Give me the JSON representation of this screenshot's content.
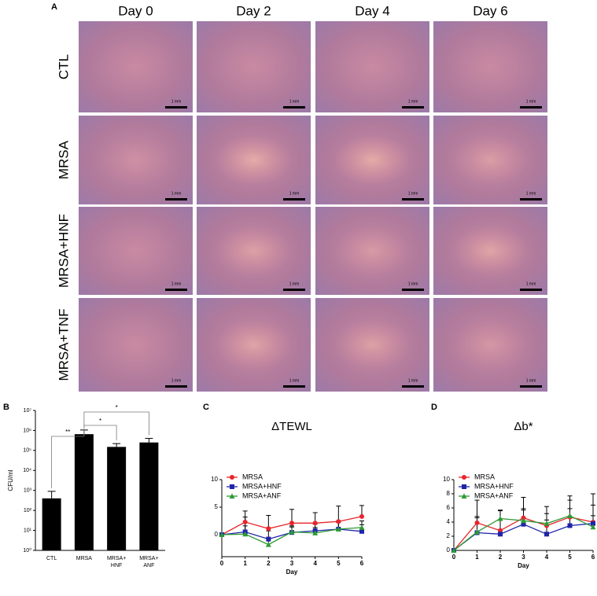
{
  "panel_a": {
    "label": "A",
    "columns": [
      "Day 0",
      "Day 2",
      "Day 4",
      "Day 6"
    ],
    "rows": [
      "CTL",
      "MRSA",
      "MRSA+HNF",
      "MRSA+TNF"
    ],
    "scale_bar": "1 mm"
  },
  "chart_data": [
    {
      "type": "bar",
      "panel": "B",
      "y_label": "CFU/ml",
      "yscale": "log",
      "categories": [
        "CTL",
        "MRSA",
        "MRSA+ HNF",
        "MRSA+ ANF"
      ],
      "values": [
        400,
        650000,
        150000,
        250000
      ],
      "errors": [
        500,
        400000,
        70000,
        150000
      ],
      "color": "#000000",
      "ylim": [
        1,
        10000000
      ],
      "yticks": [
        {
          "value": 1,
          "label": "10⁰"
        },
        {
          "value": 10,
          "label": "10¹"
        },
        {
          "value": 100,
          "label": "10²"
        },
        {
          "value": 1000,
          "label": "10³"
        },
        {
          "value": 10000,
          "label": "10⁴"
        },
        {
          "value": 100000,
          "label": "10⁵"
        },
        {
          "value": 1000000,
          "label": "10⁶"
        },
        {
          "value": 10000000,
          "label": "10⁷"
        }
      ],
      "significance": [
        "**",
        "*",
        "*"
      ]
    },
    {
      "type": "line",
      "panel": "C",
      "title": "ΔTEWL",
      "x_label": "Day",
      "legend": "top-left",
      "x": [
        0,
        1,
        2,
        3,
        4,
        5,
        6
      ],
      "xlim": [
        0,
        6
      ],
      "xticks": [
        0,
        1,
        2,
        3,
        4,
        5,
        6
      ],
      "ylim": [
        -4,
        10
      ],
      "yticks": [
        0,
        5,
        10
      ],
      "series": [
        {
          "name": "MRSA",
          "color": "#e8252b",
          "marker": "circle",
          "values": [
            0,
            2.3,
            1.1,
            2.1,
            2.1,
            2.4,
            3.3
          ],
          "errors": [
            0,
            2.0,
            2.4,
            2.5,
            1.9,
            2.8,
            2.0
          ]
        },
        {
          "name": "MRSA+HNF",
          "color": "#1f24a8",
          "marker": "square",
          "values": [
            0,
            0.5,
            -0.8,
            0.4,
            0.7,
            1.0,
            0.6
          ],
          "errors": [
            0,
            2.7,
            1.5,
            1.0,
            1.2,
            1.5,
            1.2
          ]
        },
        {
          "name": "MRSA+ANF",
          "color": "#2e9b34",
          "marker": "triangle",
          "values": [
            0,
            0.1,
            -1.8,
            0.5,
            0.3,
            1.0,
            1.3
          ],
          "errors": [
            0,
            1.5,
            1.2,
            1.1,
            1.0,
            1.2,
            1.2
          ]
        }
      ]
    },
    {
      "type": "line",
      "panel": "D",
      "title": "Δb*",
      "x_label": "Day",
      "legend": "top-left",
      "x": [
        0,
        1,
        2,
        3,
        4,
        5,
        6
      ],
      "xlim": [
        0,
        6
      ],
      "xticks": [
        0,
        1,
        2,
        3,
        4,
        5,
        6
      ],
      "ylim": [
        0,
        10
      ],
      "yticks": [
        0,
        2,
        4,
        6,
        8,
        10
      ],
      "series": [
        {
          "name": "MRSA",
          "color": "#e8252b",
          "marker": "circle",
          "values": [
            0,
            3.9,
            2.8,
            4.6,
            3.5,
            4.7,
            4.0
          ],
          "errors": [
            0,
            3.2,
            2.8,
            2.9,
            2.7,
            3.0,
            4.0
          ]
        },
        {
          "name": "MRSA+HNF",
          "color": "#1f24a8",
          "marker": "square",
          "values": [
            0,
            2.5,
            2.3,
            3.7,
            2.3,
            3.5,
            3.8
          ],
          "errors": [
            0,
            2.3,
            2.0,
            2.2,
            2.0,
            2.4,
            2.6
          ]
        },
        {
          "name": "MRSA+ANF",
          "color": "#2e9b34",
          "marker": "triangle",
          "values": [
            0,
            2.6,
            4.5,
            4.2,
            3.8,
            4.9,
            3.3
          ],
          "errors": [
            0,
            2.0,
            1.2,
            1.5,
            1.4,
            2.2,
            1.6
          ]
        }
      ]
    }
  ]
}
